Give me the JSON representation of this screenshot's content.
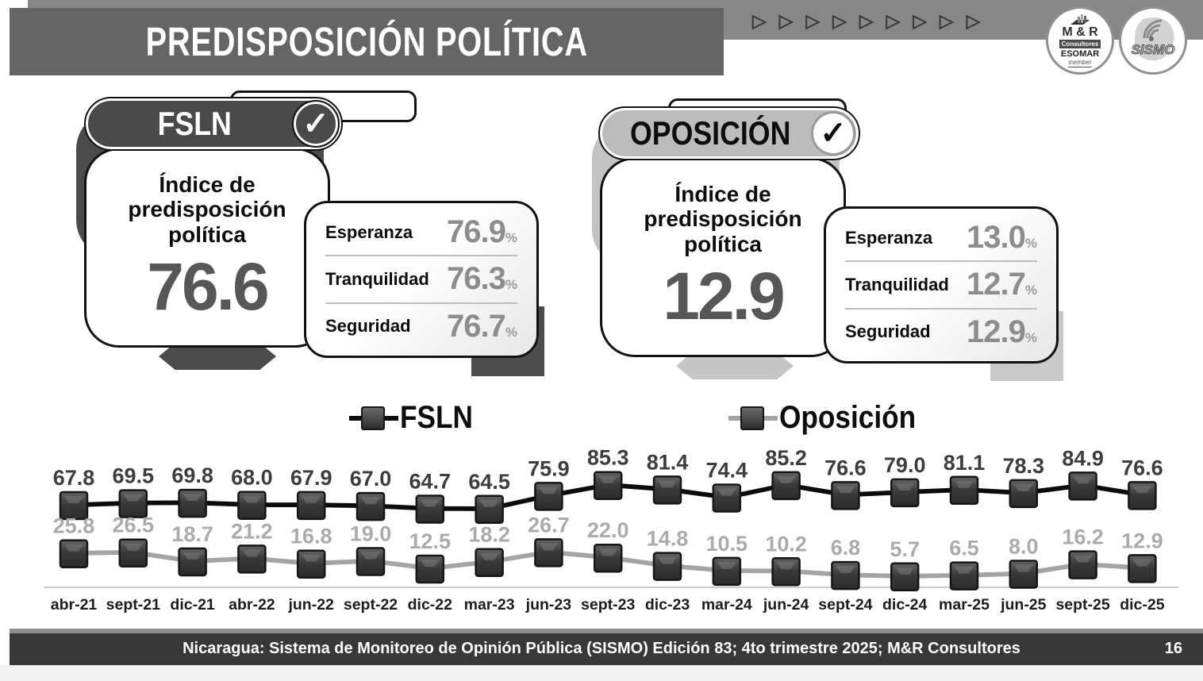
{
  "header": {
    "title": "PREDISPOSICIÓN POLÍTICA",
    "triangle_glyph": "▷",
    "logo_mr": {
      "name": "M & R",
      "sub": "Consultores",
      "org": "ESOMAR",
      "member": "member"
    },
    "logo_sismo": {
      "name": "SISMO"
    }
  },
  "cards": [
    {
      "party": "FSLN",
      "check": "✓",
      "index_title": "Índice de predisposición política",
      "index_value": "76.6",
      "stats": [
        {
          "label": "Esperanza",
          "value": "76.9",
          "unit": "%"
        },
        {
          "label": "Tranquilidad",
          "value": "76.3",
          "unit": "%"
        },
        {
          "label": "Seguridad",
          "value": "76.7",
          "unit": "%"
        }
      ]
    },
    {
      "party": "OPOSICIÓN",
      "check": "✓",
      "index_title": "Índice de predisposición política",
      "index_value": "12.9",
      "stats": [
        {
          "label": "Esperanza",
          "value": "13.0",
          "unit": "%"
        },
        {
          "label": "Tranquilidad",
          "value": "12.7",
          "unit": "%"
        },
        {
          "label": "Seguridad",
          "value": "12.9",
          "unit": "%"
        }
      ]
    }
  ],
  "chart_data": {
    "type": "line",
    "categories": [
      "abr-21",
      "sept-21",
      "dic-21",
      "abr-22",
      "jun-22",
      "sept-22",
      "dic-22",
      "mar-23",
      "jun-23",
      "sept-23",
      "dic-23",
      "mar-24",
      "jun-24",
      "sept-24",
      "dic-24",
      "mar-25",
      "jun-25",
      "sept-25",
      "dic-25"
    ],
    "series": [
      {
        "name": "FSLN",
        "color": "#0b0b0b",
        "label_color": "#3d3d3d",
        "values": [
          67.8,
          69.5,
          69.8,
          68.0,
          67.9,
          67.0,
          64.7,
          64.5,
          75.9,
          85.3,
          81.4,
          74.4,
          85.2,
          76.6,
          79.0,
          81.1,
          78.3,
          84.9,
          76.6
        ]
      },
      {
        "name": "Oposición",
        "color": "#a4a4a4",
        "label_color": "#ababab",
        "values": [
          25.8,
          26.5,
          18.7,
          21.2,
          16.8,
          19.0,
          12.5,
          18.2,
          26.7,
          22.0,
          14.8,
          10.5,
          10.2,
          6.8,
          5.7,
          6.5,
          8.0,
          16.2,
          12.9
        ]
      }
    ],
    "ylim": [
      0,
      100
    ],
    "grid": false,
    "legend_position": "top",
    "marker": "square",
    "data_labels": true
  },
  "footer": {
    "source": "Nicaragua: Sistema de Monitoreo de Opinión Pública (SISMO) Edición 83; 4to trimestre 2025; M&R Consultores",
    "page": "16"
  }
}
